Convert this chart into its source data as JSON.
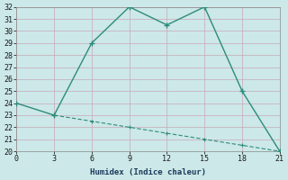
{
  "xlabel": "Humidex (Indice chaleur)",
  "line1_x": [
    0,
    3,
    6,
    9,
    12,
    15,
    18,
    21
  ],
  "line1_y": [
    24,
    23,
    29,
    32,
    30.5,
    32,
    25,
    20
  ],
  "line2_x": [
    3,
    6,
    9,
    12,
    15,
    18,
    21
  ],
  "line2_y": [
    23,
    22.5,
    22,
    21.5,
    21,
    20.5,
    20
  ],
  "line_color": "#2e8b7a",
  "bg_color": "#cce8e8",
  "grid_major_color": "#ffffff",
  "grid_minor_color": "#ddf0f0",
  "ylim": [
    20,
    32
  ],
  "xlim": [
    0,
    21
  ],
  "yticks": [
    20,
    21,
    22,
    23,
    24,
    25,
    26,
    27,
    28,
    29,
    30,
    31,
    32
  ],
  "xticks": [
    0,
    3,
    6,
    9,
    12,
    15,
    18,
    21
  ]
}
